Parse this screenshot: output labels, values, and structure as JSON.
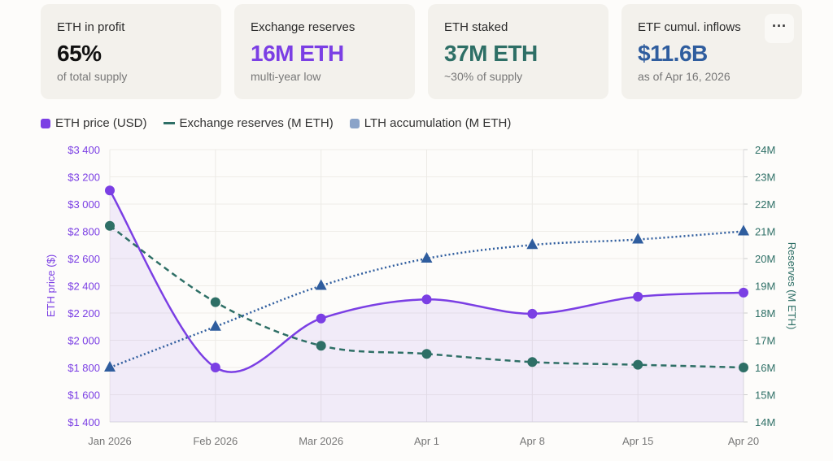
{
  "cards": [
    {
      "label": "ETH in profit",
      "value": "65%",
      "sub": "of total supply",
      "color": "#111111"
    },
    {
      "label": "Exchange reserves",
      "value": "16M ETH",
      "sub": "multi-year low",
      "color": "#7b3fe4"
    },
    {
      "label": "ETH staked",
      "value": "37M ETH",
      "sub": "~30% of supply",
      "color": "#2e6f66"
    },
    {
      "label": "ETF cumul. inflows",
      "value": "$11.6B",
      "sub": "as of Apr 16, 2026",
      "color": "#2f5d9e"
    }
  ],
  "more_button": "···",
  "chart_data": {
    "type": "line",
    "categories": [
      "Jan 2026",
      "Feb 2026",
      "Mar 2026",
      "Apr 1",
      "Apr 8",
      "Apr 15",
      "Apr 20"
    ],
    "series": [
      {
        "name": "ETH price (USD)",
        "axis": "left",
        "values": [
          3100,
          1800,
          2160,
          2300,
          2195,
          2320,
          2350
        ],
        "color": "#7b3fe4",
        "style": "solid",
        "marker": "circle",
        "area": true
      },
      {
        "name": "Exchange reserves (M ETH)",
        "axis": "right",
        "values": [
          21.2,
          18.4,
          16.8,
          16.5,
          16.2,
          16.1,
          16.0
        ],
        "color": "#2e6f66",
        "style": "dashed",
        "marker": "circle"
      },
      {
        "name": "LTH accumulation (M ETH)",
        "axis": "right",
        "values": [
          16.0,
          17.5,
          19.0,
          20.0,
          20.5,
          20.7,
          21.0
        ],
        "color": "#2f5d9e",
        "legend_color": "#8aa3c8",
        "style": "dotted",
        "marker": "triangle"
      }
    ],
    "ylabel": "ETH price ($)",
    "ylabel_right": "Reserves (M ETH)",
    "ylim": [
      1400,
      3400
    ],
    "ylim_right": [
      14,
      24
    ],
    "yticks": [
      "$1 400",
      "$1 600",
      "$1 800",
      "$2 000",
      "$2 200",
      "$2 400",
      "$2 600",
      "$2 800",
      "$3 000",
      "$3 200",
      "$3 400"
    ],
    "yticks_right": [
      "14M",
      "15M",
      "16M",
      "17M",
      "18M",
      "19M",
      "20M",
      "21M",
      "22M",
      "23M",
      "24M"
    ],
    "grid": true,
    "legend": "top-left"
  }
}
